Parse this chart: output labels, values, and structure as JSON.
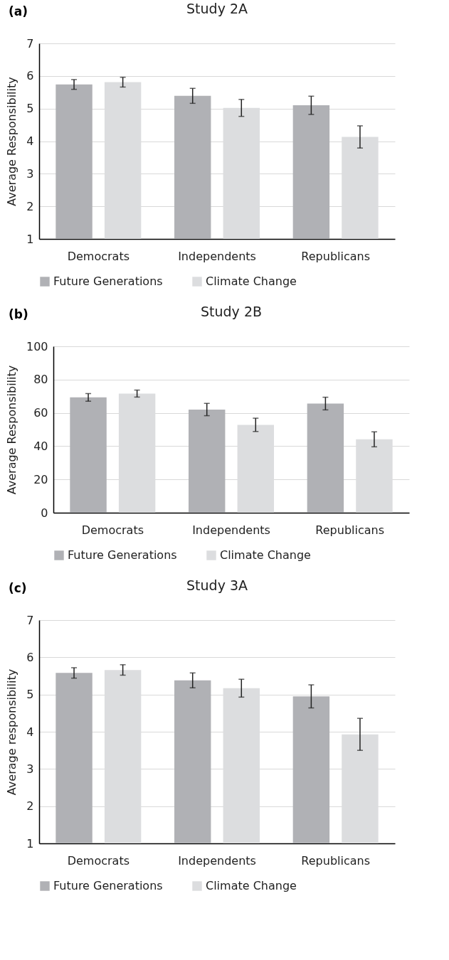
{
  "chart_data": [
    {
      "type": "bar",
      "title": "Study 2A",
      "ylabel": "Average Responsibility",
      "annotations": [
        "(a)"
      ],
      "categories": [
        "Democrats",
        "Independents",
        "Republicans"
      ],
      "series": [
        {
          "name": "Future Generations",
          "color": "#b0b1b5",
          "values": [
            5.74,
            5.39,
            5.1
          ],
          "errors": [
            0.15,
            0.23,
            0.28
          ]
        },
        {
          "name": "Climate Change",
          "color": "#dcdddf",
          "values": [
            5.81,
            5.02,
            4.13
          ],
          "errors": [
            0.15,
            0.26,
            0.34
          ]
        }
      ],
      "ylim": [
        1,
        7
      ],
      "yticks": [
        1,
        2,
        3,
        4,
        5,
        6,
        7
      ],
      "grid": "y",
      "legend": "bottom"
    },
    {
      "type": "bar",
      "title": "Study 2B",
      "ylabel": "Average Responsibility",
      "annotations": [
        "(b)"
      ],
      "categories": [
        "Democrats",
        "Independents",
        "Republicans"
      ],
      "series": [
        {
          "name": "Future Generations",
          "color": "#b0b1b5",
          "values": [
            69.3,
            62.0,
            65.6
          ],
          "errors": [
            2.3,
            3.7,
            3.8
          ]
        },
        {
          "name": "Climate Change",
          "color": "#dcdddf",
          "values": [
            71.6,
            52.8,
            44.1
          ],
          "errors": [
            2.1,
            4.0,
            4.5
          ]
        }
      ],
      "ylim": [
        0,
        100
      ],
      "yticks": [
        0,
        20,
        40,
        60,
        80,
        100
      ],
      "grid": "y",
      "legend": "bottom"
    },
    {
      "type": "bar",
      "title": "Study 3A",
      "ylabel": "Average responsibility",
      "annotations": [
        "(c)"
      ],
      "categories": [
        "Democrats",
        "Independents",
        "Republicans"
      ],
      "series": [
        {
          "name": "Future Generations",
          "color": "#b0b1b5",
          "values": [
            5.58,
            5.38,
            4.95
          ],
          "errors": [
            0.14,
            0.2,
            0.31
          ]
        },
        {
          "name": "Climate Change",
          "color": "#dcdddf",
          "values": [
            5.66,
            5.17,
            3.93
          ],
          "errors": [
            0.14,
            0.24,
            0.43
          ]
        }
      ],
      "ylim": [
        1,
        7
      ],
      "yticks": [
        1,
        2,
        3,
        4,
        5,
        6,
        7
      ],
      "grid": "y",
      "legend": "bottom"
    }
  ]
}
